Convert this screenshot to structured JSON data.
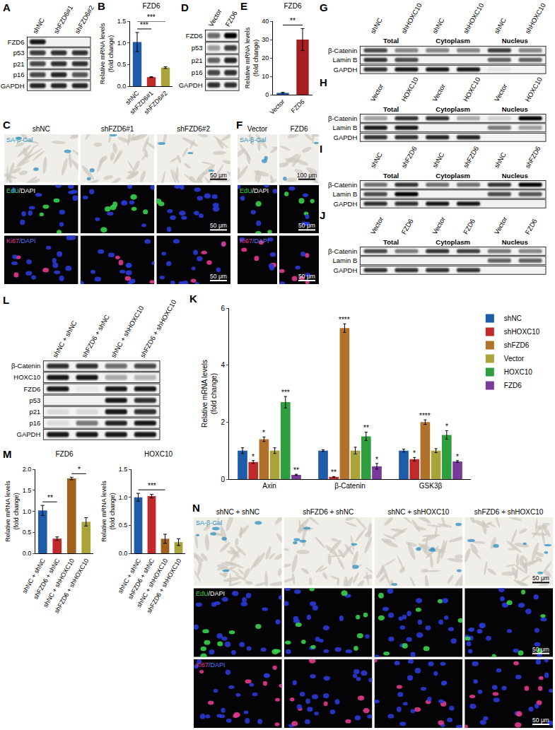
{
  "chart_data": [
    {
      "panel": "B",
      "type": "bar",
      "title": "FZD6",
      "ylabel": "Relative mRNA levels (fold change)",
      "categories": [
        "shNC",
        "shFZD6#1",
        "shFZD6#2"
      ],
      "values": [
        1.02,
        0.21,
        0.43
      ],
      "errors": [
        0.22,
        0.01,
        0.02
      ],
      "colors": [
        "#1f5ca8",
        "#c02a2a",
        "#a9a33a"
      ],
      "ylim": [
        0,
        1.5
      ],
      "yticks": [
        {
          "value": 0,
          "label": "0.0"
        },
        0.5,
        {
          "value": 1,
          "label": "1.0"
        },
        1.5
      ],
      "significance": [
        {
          "from": 0,
          "to": 1,
          "label": "***"
        },
        {
          "from": 0,
          "to": 2,
          "label": "***"
        }
      ]
    },
    {
      "panel": "E",
      "type": "bar",
      "title": "FZD6",
      "ylabel": "Relative mRNA levels (fold change)",
      "categories": [
        "Vector",
        "FZD6"
      ],
      "values": [
        1,
        30
      ],
      "errors": [
        0.3,
        6
      ],
      "colors": [
        "#1f5ca8",
        "#a51e22"
      ],
      "ylim": [
        0,
        40
      ],
      "yticks": [
        0,
        10,
        20,
        30,
        40
      ],
      "significance": [
        {
          "from": 0,
          "to": 1,
          "label": "**"
        }
      ]
    },
    {
      "panel": "K",
      "type": "bar",
      "ylabel": "Relative mRNA levels (fold change)",
      "categories": [
        "Axin",
        "β-Catenin",
        "GSK3β"
      ],
      "ylim": [
        0,
        6
      ],
      "yticks": [
        0,
        2,
        4,
        6
      ],
      "legend": "right",
      "series": [
        {
          "name": "shNC",
          "color": "#1f5ca8",
          "values": [
            1.0,
            1.0,
            1.0
          ],
          "errors": [
            0.1,
            0.03,
            0.05
          ]
        },
        {
          "name": "shHOXC10",
          "color": "#c02a2a",
          "values": [
            0.6,
            0.08,
            0.7
          ],
          "errors": [
            0.05,
            0.01,
            0.06
          ],
          "significance": [
            "*",
            "**",
            "*"
          ]
        },
        {
          "name": "shFZD6",
          "color": "#b0722a",
          "values": [
            1.4,
            5.3,
            2.0
          ],
          "errors": [
            0.08,
            0.15,
            0.08
          ],
          "significance": [
            "*",
            "****",
            "****"
          ]
        },
        {
          "name": "Vector",
          "color": "#a9a33a",
          "values": [
            1.0,
            1.0,
            1.0
          ],
          "errors": [
            0.1,
            0.12,
            0.07
          ]
        },
        {
          "name": "HOXC10",
          "color": "#2e9e3e",
          "values": [
            2.7,
            1.5,
            1.55
          ],
          "errors": [
            0.2,
            0.15,
            0.15
          ],
          "significance": [
            "***",
            "**",
            "*"
          ]
        },
        {
          "name": "FZD6",
          "color": "#7a3a9a",
          "values": [
            0.15,
            0.45,
            0.62
          ],
          "errors": [
            0.02,
            0.1,
            0.03
          ],
          "significance": [
            "**",
            "*",
            "*"
          ]
        }
      ]
    },
    {
      "panel": "M",
      "type": "bar",
      "title": "FZD6",
      "ylabel": "Relative mRNA levels (fold change)",
      "categories": [
        "shNC + shNC",
        "shFZD6 + shNC",
        "shNC + shHOXC10",
        "shFZD6 + shHOXC10"
      ],
      "values": [
        1.02,
        0.35,
        1.78,
        0.75
      ],
      "errors": [
        0.12,
        0.04,
        0.03,
        0.1
      ],
      "colors": [
        "#1f5ca8",
        "#c02a2a",
        "#a0601e",
        "#a9a33a"
      ],
      "ylim": [
        0,
        2
      ],
      "yticks": [
        {
          "value": 0,
          "label": "0.0"
        },
        0.5,
        {
          "value": 1,
          "label": "1.0"
        },
        1.5,
        {
          "value": 2,
          "label": "2.0"
        }
      ],
      "significance": [
        {
          "from": 0,
          "to": 1,
          "label": "**"
        },
        {
          "from": 2,
          "to": 3,
          "label": "*"
        }
      ]
    },
    {
      "panel": "M",
      "type": "bar",
      "title": "HOXC10",
      "ylabel": "Relative mRNA levels (fold change)",
      "categories": [
        "shNC + shNC",
        "shFZD6 + shNC",
        "shNC + shHOXC10",
        "shFZD6 + shHOXC10"
      ],
      "values": [
        1.0,
        1.02,
        0.26,
        0.2
      ],
      "errors": [
        0.07,
        0.03,
        0.08,
        0.06
      ],
      "colors": [
        "#1f5ca8",
        "#c02a2a",
        "#a0601e",
        "#a9a33a"
      ],
      "ylim": [
        0,
        1.5
      ],
      "yticks": [
        {
          "value": 0,
          "label": "0.0"
        },
        0.5,
        {
          "value": 1,
          "label": "1.0"
        },
        1.5
      ],
      "significance": [
        {
          "from": 0,
          "to": 2,
          "label": "***"
        }
      ]
    }
  ],
  "blots": [
    {
      "panel": "A",
      "lanes": [
        "shNC",
        "shFZD6#1",
        "shFZD6#2"
      ],
      "rows": [
        {
          "label": "FZD6",
          "bands": [
            0.9,
            0,
            0
          ]
        },
        {
          "label": "p53",
          "bands": [
            0.75,
            0.8,
            0.8
          ]
        },
        {
          "label": "p21",
          "bands": [
            0.7,
            0.8,
            0.8
          ]
        },
        {
          "label": "p16",
          "bands": [
            0.7,
            0.85,
            0.65
          ]
        },
        {
          "label": "GAPDH",
          "bands": [
            0.85,
            0.85,
            0.85
          ]
        }
      ]
    },
    {
      "panel": "D",
      "lanes": [
        "Vector",
        "FZD6"
      ],
      "rows": [
        {
          "label": "FZD6",
          "bands": [
            0.55,
            1
          ]
        },
        {
          "label": "p53",
          "bands": [
            0.35,
            0.75
          ]
        },
        {
          "label": "p21",
          "bands": [
            0.6,
            0.85
          ]
        },
        {
          "label": "p16",
          "bands": [
            0.7,
            0.8
          ]
        },
        {
          "label": "GAPDH",
          "bands": [
            0.8,
            0.8
          ]
        }
      ]
    },
    {
      "panel": "G",
      "lanes": [
        "shNC",
        "shHOXC10",
        "shNC",
        "shHOXC10",
        "shNC",
        "shHOXC10"
      ],
      "groups": [
        "Total",
        "Cytoplasm",
        "Nucleus"
      ],
      "rows": [
        {
          "label": "β-Catenin",
          "bands": [
            0.7,
            0.45,
            0.45,
            0.45,
            0.75,
            0.45
          ]
        },
        {
          "label": "Lamin B",
          "bands": [
            0.8,
            0.7,
            0,
            0,
            0.6,
            0.6
          ]
        },
        {
          "label": "GAPDH",
          "bands": [
            0.8,
            0.9,
            0.9,
            0.9,
            0.05,
            0
          ]
        }
      ]
    },
    {
      "panel": "H",
      "lanes": [
        "Vector",
        "HOXC10",
        "Vector",
        "HOXC10",
        "Vector",
        "HOXC10"
      ],
      "groups": [
        "Total",
        "Cytoplasm",
        "Nucleus"
      ],
      "rows": [
        {
          "label": "β-Catenin",
          "bands": [
            0.35,
            0.8,
            0.8,
            0.3,
            0.15,
            1
          ]
        },
        {
          "label": "Lamin B",
          "bands": [
            0.9,
            0.9,
            0,
            0,
            0.5,
            0.35
          ]
        },
        {
          "label": "GAPDH",
          "bands": [
            0.8,
            0.8,
            0.85,
            0.85,
            0,
            0
          ]
        }
      ]
    },
    {
      "panel": "I",
      "lanes": [
        "shNC",
        "shFZD6",
        "shNC",
        "shFZD6",
        "shNC",
        "shFZD6"
      ],
      "groups": [
        "Total",
        "Cytoplasm",
        "Nucleus"
      ],
      "rows": [
        {
          "label": "β-Catenin",
          "bands": [
            0.55,
            0.8,
            0.55,
            0.55,
            0.8,
            1
          ]
        },
        {
          "label": "Lamin B",
          "bands": [
            0.7,
            1,
            0,
            0,
            0.7,
            0.65
          ]
        },
        {
          "label": "GAPDH",
          "bands": [
            0.8,
            0.8,
            0.9,
            0.9,
            0,
            0
          ]
        }
      ]
    },
    {
      "panel": "J",
      "lanes": [
        "Vector",
        "FZD6",
        "Vector",
        "FZD6",
        "Vector",
        "FZD6"
      ],
      "groups": [
        "Total",
        "Cytoplasm",
        "Nucleus"
      ],
      "rows": [
        {
          "label": "β-Catenin",
          "bands": [
            0.7,
            0.5,
            0.8,
            0.75,
            0.5,
            0.45
          ]
        },
        {
          "label": "Lamin B",
          "bands": [
            0,
            0,
            0,
            0,
            0.6,
            0.6
          ]
        },
        {
          "label": "GAPDH",
          "bands": [
            0.8,
            0.8,
            0.8,
            0.8,
            0,
            0
          ]
        }
      ]
    },
    {
      "panel": "L",
      "lanes": [
        "shNC + shNC",
        "shFZD6 + shNC",
        "shNC + shHOXC10",
        "shFZD6 + shHOXC10"
      ],
      "rows": [
        {
          "label": "β-Catenin",
          "bands": [
            0.8,
            0.8,
            0.55,
            0.7
          ]
        },
        {
          "label": "HOXC10",
          "bands": [
            0.9,
            0.9,
            0.3,
            0.25
          ]
        },
        {
          "label": "FZD6",
          "bands": [
            0.9,
            0.05,
            0.9,
            0.9
          ]
        },
        {
          "label": "p53",
          "bands": [
            0,
            0,
            0.9,
            0.8
          ]
        },
        {
          "label": "p21",
          "bands": [
            0.1,
            0.1,
            0.9,
            0.8
          ]
        },
        {
          "label": "p16",
          "bands": [
            0.1,
            0.5,
            0.85,
            0.9
          ]
        },
        {
          "label": "GAPDH",
          "bands": [
            0.9,
            0.9,
            0.9,
            0.9
          ]
        }
      ]
    }
  ],
  "images": [
    {
      "panel": "C",
      "columns": [
        "shNC",
        "shFZD6#1",
        "shFZD6#2"
      ],
      "rows": [
        {
          "label": "SA-β-Gal",
          "colors": [
            "#2b8fc0"
          ],
          "scale_bar": "50 μm"
        },
        {
          "label": "EdU/DAPI",
          "colors": [
            "#3ad24c",
            "#ffffff"
          ],
          "scale_bar": "50 μm"
        },
        {
          "label": "Ki67/DAPI",
          "colors": [
            "#e23a8e",
            "#5a78ff"
          ],
          "scale_bar": "50 μm"
        }
      ]
    },
    {
      "panel": "F",
      "columns": [
        "Vector",
        "FZD6"
      ],
      "rows": [
        {
          "label": "SA-β-Gal",
          "colors": [
            "#2b8fc0"
          ],
          "scale_bar": "100 μm"
        },
        {
          "label": "EdU/DAPI",
          "colors": [
            "#3ad24c",
            "#ffffff"
          ],
          "scale_bar": "50 μm"
        },
        {
          "label": "Ki67/DAPI",
          "colors": [
            "#e23a8e",
            "#5a78ff"
          ],
          "scale_bar": "50 μm"
        }
      ]
    },
    {
      "panel": "N",
      "columns": [
        "shNC + shNC",
        "shFZD6 + shNC",
        "shNC + shHOXC10",
        "shFZD6 + shHOXC10"
      ],
      "rows": [
        {
          "label": "SA-β-Gal",
          "colors": [
            "#2b8fc0"
          ],
          "scale_bar": "50 μm"
        },
        {
          "label": "EdU/DAPI",
          "colors": [
            "#3ad24c",
            "#ffffff"
          ],
          "scale_bar": "50 μm"
        },
        {
          "label": "Ki67/DAPI",
          "colors": [
            "#e23a8e",
            "#5a78ff"
          ],
          "scale_bar": "50 μm"
        }
      ]
    }
  ]
}
